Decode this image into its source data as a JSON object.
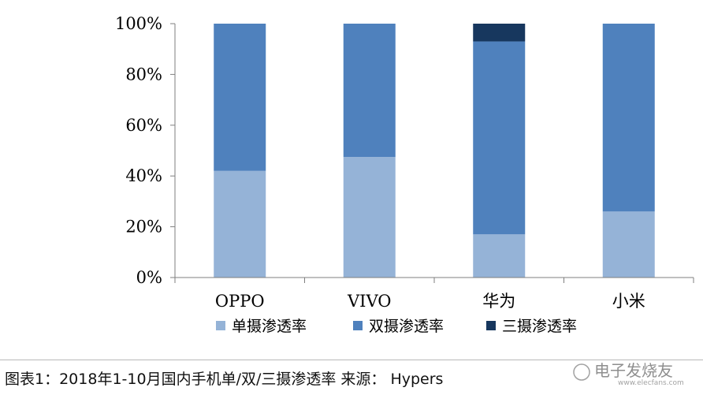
{
  "chart_data": {
    "type": "bar",
    "stacked": true,
    "categories": [
      "OPPO",
      "VIVO",
      "华为",
      "小米"
    ],
    "series": [
      {
        "name": "单摄渗透率",
        "values": [
          42,
          47.5,
          17,
          26
        ],
        "color": "#95b3d7"
      },
      {
        "name": "双摄渗透率",
        "values": [
          58,
          52.5,
          76,
          74
        ],
        "color": "#4f81bd"
      },
      {
        "name": "三摄渗透率",
        "values": [
          0,
          0,
          7,
          0
        ],
        "color": "#17375e"
      }
    ],
    "ylim": [
      0,
      100
    ],
    "yticks": [
      "0%",
      "20%",
      "40%",
      "60%",
      "80%",
      "100%"
    ],
    "ytick_values": [
      0,
      20,
      40,
      60,
      80,
      100
    ],
    "xlabel": "",
    "ylabel": "",
    "grid": false,
    "legend_position": "bottom"
  },
  "caption": "图表1：2018年1-10月国内手机单/双/三摄渗透率  来源： Hypers",
  "watermark": {
    "text": "电子发烧友",
    "url": "www.elecfans.com"
  }
}
